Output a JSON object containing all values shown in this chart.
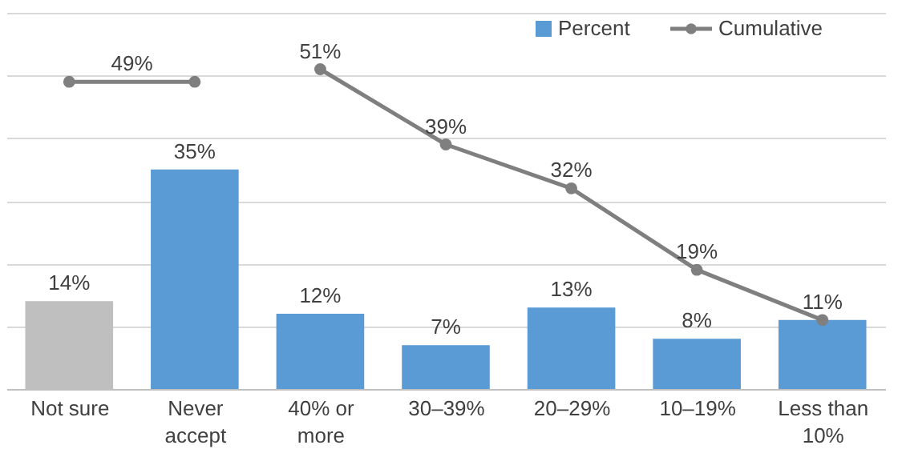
{
  "chart_data": {
    "type": "bar",
    "categories": [
      "Not sure",
      "Never accept",
      "40% or more",
      "30–39%",
      "20–29%",
      "10–19%",
      "Less than 10%"
    ],
    "series": [
      {
        "name": "Percent",
        "color": "#5b9bd5",
        "colors": [
          "#bfbfbf",
          "#5b9bd5",
          "#5b9bd5",
          "#5b9bd5",
          "#5b9bd5",
          "#5b9bd5",
          "#5b9bd5"
        ],
        "values": [
          14,
          35,
          12,
          7,
          13,
          8,
          11
        ],
        "value_labels": [
          "14%",
          "35%",
          "12%",
          "7%",
          "13%",
          "8%",
          "11%"
        ]
      },
      {
        "type": "line",
        "color": "#7f7f7f",
        "values": [
          49,
          49,
          null,
          null,
          null,
          null,
          null
        ]
      },
      {
        "type": "line",
        "name": "Cumulative",
        "color": "#7f7f7f",
        "values": [
          null,
          null,
          51,
          39,
          32,
          19,
          11
        ],
        "value_labels": [
          null,
          null,
          "51%",
          "39%",
          "32%",
          "19%",
          null
        ]
      }
    ],
    "annotations": [
      "49%"
    ],
    "ylim": [
      0,
      60
    ],
    "yticks": [
      {
        "value": 0,
        "label": null
      },
      {
        "value": 10,
        "label": null
      },
      {
        "value": 20,
        "label": null
      },
      {
        "value": 30,
        "label": null
      },
      {
        "value": 40,
        "label": null
      },
      {
        "value": 50,
        "label": null
      },
      {
        "value": 60,
        "label": null
      }
    ],
    "grid": "y",
    "tick_labels": "x",
    "legend": "top right",
    "marker": "circle",
    "line_style": "solid"
  }
}
